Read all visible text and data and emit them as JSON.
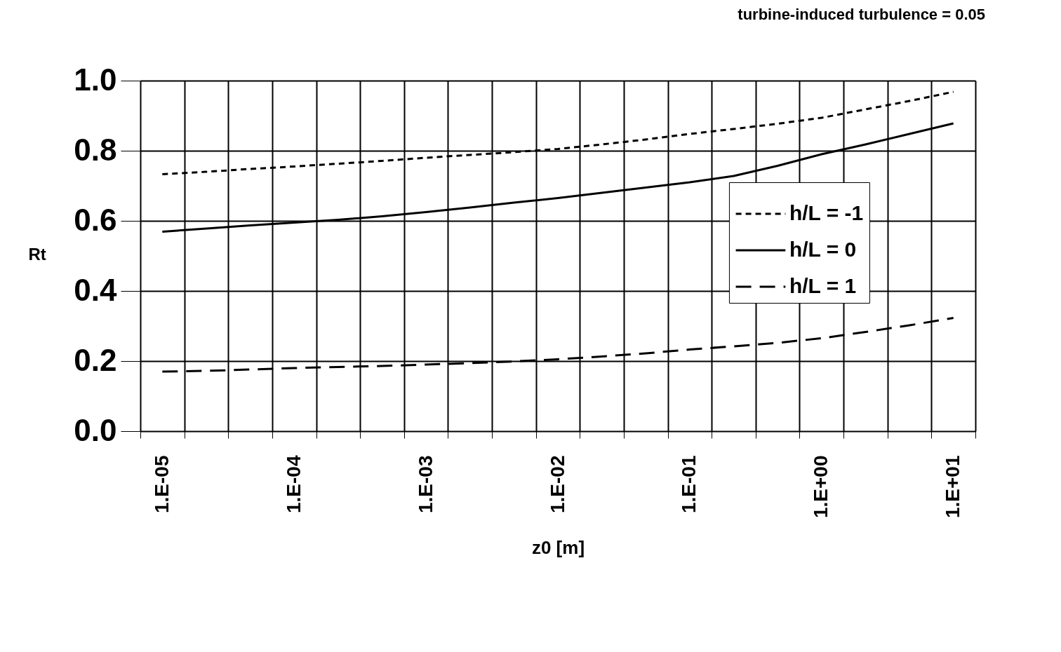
{
  "chart_data": {
    "type": "line",
    "title": "turbine-induced turbulence = 0.05",
    "xlabel": "z0 [m]",
    "ylabel": "Rt",
    "categories": [
      "1.E-05",
      null,
      null,
      "1.E-04",
      null,
      null,
      "1.E-03",
      null,
      null,
      "1.E-02",
      null,
      null,
      "1.E-01",
      null,
      null,
      "1.E+00",
      null,
      null,
      "1.E+01"
    ],
    "series": [
      {
        "name": "h/L = -1",
        "color": "#000000",
        "line_style": "dotted",
        "values": [
          0.733,
          0.74,
          0.748,
          0.755,
          0.763,
          0.771,
          0.78,
          0.788,
          0.796,
          0.805,
          0.818,
          0.832,
          0.848,
          0.862,
          0.877,
          0.894,
          0.918,
          0.942,
          0.968
        ]
      },
      {
        "name": "h/L =  0",
        "color": "#000000",
        "line_style": "solid",
        "values": [
          0.569,
          0.578,
          0.587,
          0.595,
          0.603,
          0.613,
          0.625,
          0.638,
          0.652,
          0.665,
          0.68,
          0.695,
          0.71,
          0.728,
          0.757,
          0.79,
          0.818,
          0.848,
          0.878
        ]
      },
      {
        "name": "h/L =  1",
        "color": "#000000",
        "line_style": "dashed",
        "values": [
          0.17,
          0.172,
          0.176,
          0.18,
          0.183,
          0.186,
          0.19,
          0.194,
          0.199,
          0.205,
          0.213,
          0.222,
          0.233,
          0.242,
          0.252,
          0.265,
          0.283,
          0.302,
          0.323
        ]
      }
    ],
    "ylim": [
      0,
      1
    ],
    "yticks": [
      {
        "value": 0,
        "label": "0.0"
      },
      {
        "value": 0.2,
        "label": "0.2"
      },
      {
        "value": 0.4,
        "label": "0.4"
      },
      {
        "value": 0.6,
        "label": "0.6"
      },
      {
        "value": 0.8,
        "label": "0.8"
      },
      {
        "value": 1,
        "label": "1.0"
      }
    ],
    "grid": true,
    "legend": "right",
    "marker": "none"
  }
}
